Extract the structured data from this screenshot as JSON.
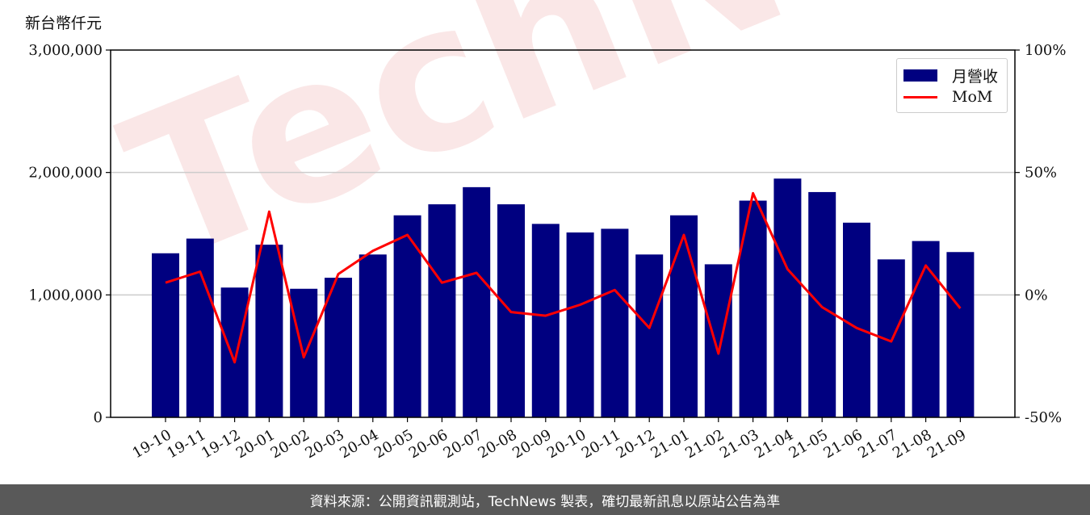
{
  "unit_label": "新台幣仟元",
  "watermark": "TechNews",
  "footer_text": "資料來源：公開資訊觀測站，TechNews 製表，確切最新訊息以原站公告為準",
  "colors": {
    "bar": "#000080",
    "line": "#ff0000",
    "grid": "#cccccc",
    "footer_bg": "#595959"
  },
  "chart_data": {
    "type": "bar",
    "categories": [
      "19-10",
      "19-11",
      "19-12",
      "20-01",
      "20-02",
      "20-03",
      "20-04",
      "20-05",
      "20-06",
      "20-07",
      "20-08",
      "20-09",
      "20-10",
      "20-11",
      "20-12",
      "21-01",
      "21-02",
      "21-03",
      "21-04",
      "21-05",
      "21-06",
      "21-07",
      "21-08",
      "21-09"
    ],
    "series": [
      {
        "name": "月營收",
        "type": "bar",
        "axis": "left",
        "values": [
          1340000,
          1460000,
          1060000,
          1410000,
          1050000,
          1140000,
          1330000,
          1650000,
          1740000,
          1880000,
          1740000,
          1580000,
          1510000,
          1540000,
          1330000,
          1650000,
          1250000,
          1770000,
          1950000,
          1840000,
          1590000,
          1290000,
          1440000,
          1350000
        ]
      },
      {
        "name": "MoM",
        "type": "line",
        "axis": "right",
        "values": [
          5,
          9.5,
          -27.5,
          34,
          -25.5,
          8.5,
          18,
          24.5,
          5,
          9,
          -7,
          -8.5,
          -4,
          2,
          -13.5,
          24.5,
          -24,
          41.5,
          10.5,
          -5,
          -13.5,
          -19,
          12,
          -5.5
        ]
      }
    ],
    "y_left": {
      "lim": [
        0,
        3000000
      ],
      "ticks": [
        0,
        1000000,
        2000000,
        3000000
      ],
      "tick_labels": [
        "0",
        "1,000,000",
        "2,000,000",
        "3,000,000"
      ]
    },
    "y_right": {
      "lim": [
        -50,
        100
      ],
      "ticks": [
        -50,
        0,
        50,
        100
      ],
      "tick_labels": [
        "-50%",
        "0%",
        "50%",
        "100%"
      ]
    },
    "grid": "horizontal",
    "legend_position": "top-right"
  }
}
